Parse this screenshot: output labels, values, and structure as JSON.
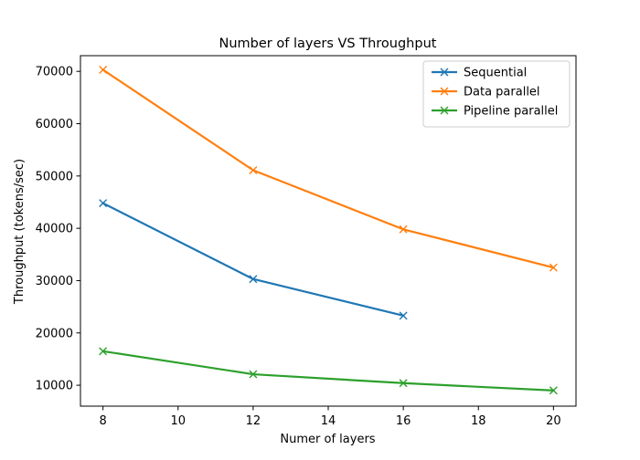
{
  "chart_data": {
    "type": "line",
    "title": "Number of layers VS Throughput",
    "xlabel": "Numer of layers",
    "ylabel": "Throughput (tokens/sec)",
    "xlim": [
      7.4,
      20.6
    ],
    "ylim": [
      6000,
      73000
    ],
    "xticks": [
      8,
      10,
      12,
      14,
      16,
      18,
      20
    ],
    "yticks": [
      10000,
      20000,
      30000,
      40000,
      50000,
      60000,
      70000
    ],
    "grid": false,
    "legend_position": "top-right",
    "marker": "x",
    "series": [
      {
        "name": "Sequential",
        "color": "#1f77b4",
        "x": [
          8,
          12,
          16
        ],
        "y": [
          44800,
          30300,
          23300
        ]
      },
      {
        "name": "Data parallel",
        "color": "#ff7f0e",
        "x": [
          8,
          12,
          16,
          20
        ],
        "y": [
          70300,
          51100,
          39800,
          32500
        ]
      },
      {
        "name": "Pipeline parallel",
        "color": "#2ca02c",
        "x": [
          8,
          12,
          16,
          20
        ],
        "y": [
          16500,
          12100,
          10400,
          9000
        ]
      }
    ]
  }
}
